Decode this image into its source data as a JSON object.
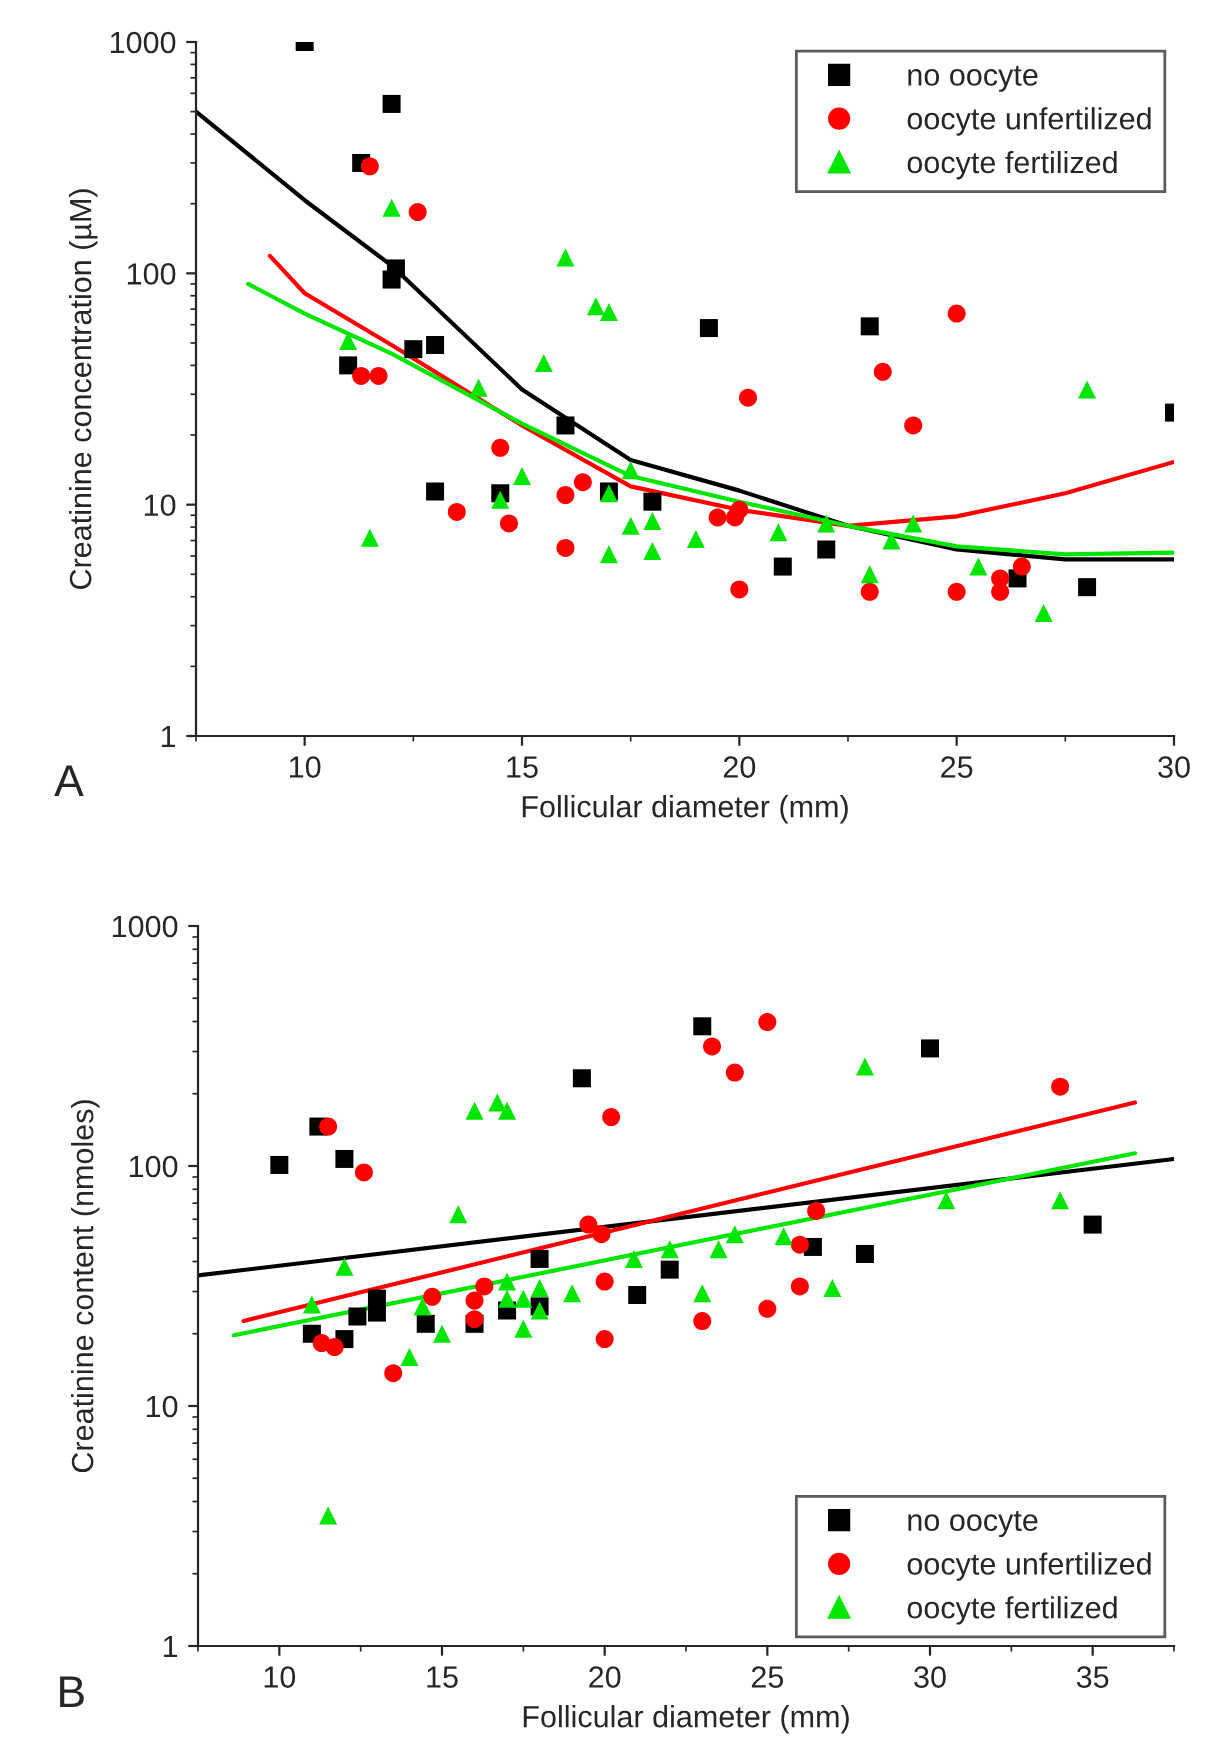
{
  "chart_data": [
    {
      "type": "scatter",
      "xlabel": "Follicular diameter (mm)",
      "ylabel": "Creatinine concentration (µM)",
      "log": "y",
      "xlim": [
        7.5,
        30
      ],
      "xticks": [
        10,
        15,
        20,
        25,
        30
      ],
      "ylim": [
        1,
        1000
      ],
      "yticks": [
        1,
        10,
        100,
        1000
      ],
      "legend": "top right",
      "grid": false,
      "annotations": [
        "A"
      ],
      "series": [
        {
          "name": "no oocyte",
          "marker": "square",
          "color": "#000000",
          "x": [
            10,
            11.3,
            12,
            12.1,
            12,
            11,
            12.5,
            13,
            13,
            14.5,
            16,
            17,
            18,
            19.3,
            21,
            22,
            23,
            26.4,
            28,
            30
          ],
          "values": [
            1000,
            300,
            540,
            105,
            94,
            40,
            47,
            49,
            11.4,
            11.2,
            22,
            11.4,
            10.3,
            58,
            5.4,
            6.4,
            59,
            4.8,
            4.4,
            25
          ]
        },
        {
          "name": "oocyte unfertilized",
          "marker": "circle",
          "color": "#ff0000",
          "x": [
            11.5,
            12.6,
            11.3,
            11.7,
            14.5,
            13.5,
            14.7,
            16,
            16.4,
            16,
            19.5,
            19.9,
            20,
            20,
            20.2,
            23,
            23.3,
            24,
            25,
            25,
            26,
            26,
            26.5
          ],
          "values": [
            290,
            184,
            36,
            36,
            17.6,
            9.3,
            8.3,
            11,
            12.5,
            6.5,
            8.8,
            8.8,
            9.5,
            4.3,
            29,
            4.2,
            37.5,
            22,
            67,
            4.2,
            4.8,
            4.2,
            5.4
          ]
        },
        {
          "name": "oocyte fertilized",
          "marker": "triangle",
          "color": "#00e600",
          "x": [
            11,
            11.5,
            12,
            14,
            15.5,
            16,
            16.7,
            17,
            14.5,
            15,
            17,
            17.5,
            17,
            17.5,
            18,
            18,
            19,
            20.9,
            22,
            23,
            23.5,
            24,
            25.5,
            27,
            28
          ],
          "values": [
            51,
            7.2,
            192,
            32,
            41,
            117,
            72,
            68,
            10.5,
            13.3,
            11.2,
            14.1,
            6.1,
            8.1,
            8.5,
            6.3,
            7.1,
            7.6,
            8.3,
            5.0,
            7.0,
            8.3,
            5.4,
            3.4,
            31.5
          ]
        },
        {
          "type": "line",
          "marker": "none",
          "line_style": "solid",
          "color": "#000000",
          "x": [
            7.5,
            10,
            12,
            15,
            17.5,
            20,
            22.5,
            25,
            27.5,
            30
          ],
          "values": [
            500,
            207,
            108,
            31.5,
            15.6,
            11.5,
            8.1,
            6.4,
            5.8,
            5.8
          ]
        },
        {
          "type": "line",
          "marker": "none",
          "line_style": "solid",
          "color": "#ff0000",
          "x": [
            9.2,
            10,
            12,
            15,
            17.5,
            20,
            22.5,
            25,
            27.5,
            30
          ],
          "values": [
            119,
            82,
            49,
            22,
            12,
            9.5,
            8.1,
            8.9,
            11.2,
            15.3
          ]
        },
        {
          "type": "line",
          "marker": "none",
          "line_style": "solid",
          "color": "#00e600",
          "x": [
            8.7,
            10,
            12,
            15,
            17.5,
            20,
            22.5,
            25,
            27.5,
            30
          ],
          "values": [
            90,
            67,
            45,
            22.4,
            13.3,
            10.3,
            8.1,
            6.6,
            6.1,
            6.2
          ]
        }
      ]
    },
    {
      "type": "scatter",
      "xlabel": "Follicular diameter (mm)",
      "ylabel": "Creatinine content (nmoles)",
      "log": "y",
      "xlim": [
        7.5,
        37.5
      ],
      "xticks": [
        10,
        15,
        20,
        25,
        30,
        35
      ],
      "ylim": [
        1,
        1000
      ],
      "yticks": [
        1,
        10,
        100,
        1000
      ],
      "legend": "bottom right",
      "grid": false,
      "annotations": [
        "B"
      ],
      "series": [
        {
          "name": "no oocyte",
          "marker": "square",
          "color": "#000000",
          "x": [
            10,
            11.2,
            12,
            11,
            12,
            12.4,
            13,
            13,
            14.5,
            16,
            17,
            18,
            18,
            19.3,
            21,
            22,
            23,
            26.4,
            28,
            30,
            35
          ],
          "values": [
            101,
            146,
            107,
            20,
            19,
            23.6,
            28,
            24.5,
            22,
            22,
            25,
            26,
            41,
            232,
            29,
            37,
            382,
            46,
            43,
            309,
            57
          ]
        },
        {
          "name": "oocyte unfertilized",
          "marker": "circle",
          "color": "#ff0000",
          "x": [
            11.5,
            12.6,
            11.3,
            11.7,
            13.5,
            14.7,
            16,
            16,
            16.3,
            19.5,
            19.9,
            20,
            20,
            20.2,
            23.3,
            23,
            24,
            25,
            25,
            26,
            26,
            26.5,
            34
          ],
          "values": [
            146,
            94,
            18.3,
            17.6,
            13.7,
            28.5,
            27.5,
            23,
            31.5,
            57,
            52,
            33,
            19,
            160,
            315,
            22.6,
            245,
            398,
            25.4,
            47,
            31.5,
            65,
            214
          ]
        },
        {
          "name": "oocyte fertilized",
          "marker": "triangle",
          "color": "#00e600",
          "x": [
            11,
            11.5,
            12,
            14,
            14.4,
            15,
            15.5,
            16,
            16.7,
            17,
            17,
            17,
            17.5,
            17.5,
            18,
            18,
            19,
            20.9,
            22,
            23,
            23.5,
            24,
            25.5,
            27,
            28,
            30.5,
            34
          ],
          "values": [
            26.5,
            3.5,
            38,
            16,
            26,
            20,
            63,
            170,
            184,
            170,
            33,
            28,
            28,
            21,
            31,
            25,
            29.5,
            41,
            45,
            29.5,
            45,
            52,
            51,
            31,
            260,
            72,
            72
          ]
        },
        {
          "type": "line",
          "marker": "none",
          "line_style": "solid",
          "color": "#000000",
          "x": [
            7.5,
            37.5
          ],
          "values": [
            35,
            107
          ]
        },
        {
          "type": "line",
          "marker": "none",
          "line_style": "solid",
          "color": "#ff0000",
          "x": [
            8.9,
            36.3
          ],
          "values": [
            22.6,
            184
          ]
        },
        {
          "type": "line",
          "marker": "none",
          "line_style": "solid",
          "color": "#00e600",
          "x": [
            8.6,
            36.3
          ],
          "values": [
            19.7,
            113
          ]
        }
      ]
    }
  ]
}
